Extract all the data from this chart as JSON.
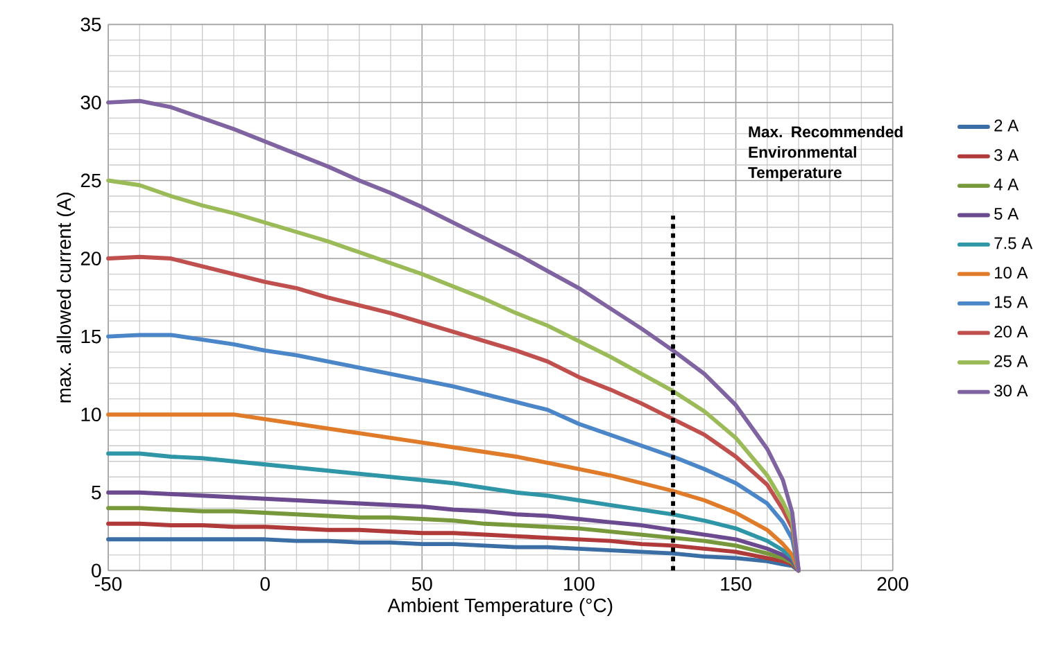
{
  "chart_data": {
    "type": "line",
    "xlabel": "Ambient Temperature (°C)",
    "ylabel": "max. allowed current (A)",
    "x": [
      -50,
      -40,
      -30,
      -20,
      -10,
      0,
      10,
      20,
      30,
      40,
      50,
      60,
      70,
      80,
      90,
      100,
      110,
      120,
      130,
      140,
      150,
      160,
      165,
      168,
      170
    ],
    "xlim": [
      -50,
      200
    ],
    "xticks": [
      -50,
      0,
      50,
      100,
      150,
      200
    ],
    "ylim": [
      0,
      35
    ],
    "yticks": [
      0,
      5,
      10,
      15,
      20,
      25,
      30,
      35
    ],
    "grid": true,
    "legend": "right",
    "marker": "none",
    "line_style": "solid",
    "annotations": [
      "Max. Recommended Environmental Temperature"
    ],
    "ref_lines": [
      {
        "axis": "x",
        "value": 130,
        "color": "#000000",
        "line_style": "dotted"
      }
    ],
    "series": [
      {
        "name": "2 A",
        "color": "#3a6ea5",
        "values": [
          2.0,
          2.0,
          2.0,
          2.0,
          2.0,
          2.0,
          1.9,
          1.9,
          1.8,
          1.8,
          1.7,
          1.7,
          1.6,
          1.5,
          1.5,
          1.4,
          1.3,
          1.2,
          1.1,
          0.9,
          0.8,
          0.6,
          0.4,
          0.3,
          0
        ]
      },
      {
        "name": "3 A",
        "color": "#b03a3a",
        "values": [
          3.0,
          3.0,
          2.9,
          2.9,
          2.8,
          2.8,
          2.7,
          2.6,
          2.6,
          2.5,
          2.4,
          2.4,
          2.3,
          2.2,
          2.1,
          2.0,
          1.9,
          1.7,
          1.6,
          1.4,
          1.2,
          0.8,
          0.6,
          0.4,
          0
        ]
      },
      {
        "name": "4 A",
        "color": "#77993c",
        "values": [
          4.0,
          4.0,
          3.9,
          3.8,
          3.8,
          3.7,
          3.6,
          3.5,
          3.4,
          3.4,
          3.3,
          3.2,
          3.0,
          2.9,
          2.8,
          2.7,
          2.5,
          2.3,
          2.1,
          1.9,
          1.6,
          1.1,
          0.8,
          0.5,
          0
        ]
      },
      {
        "name": "5 A",
        "color": "#6b4a8f",
        "values": [
          5.0,
          5.0,
          4.9,
          4.8,
          4.7,
          4.6,
          4.5,
          4.4,
          4.3,
          4.2,
          4.1,
          3.9,
          3.8,
          3.6,
          3.5,
          3.3,
          3.1,
          2.9,
          2.6,
          2.3,
          2.0,
          1.4,
          1.0,
          0.6,
          0
        ]
      },
      {
        "name": "7.5 A",
        "color": "#2f96a8",
        "values": [
          7.5,
          7.5,
          7.3,
          7.2,
          7.0,
          6.8,
          6.6,
          6.4,
          6.2,
          6.0,
          5.8,
          5.6,
          5.3,
          5.0,
          4.8,
          4.5,
          4.2,
          3.9,
          3.6,
          3.2,
          2.7,
          1.9,
          1.3,
          0.8,
          0
        ]
      },
      {
        "name": "10 A",
        "color": "#e07b2a",
        "values": [
          10,
          10,
          10,
          10,
          10,
          9.7,
          9.4,
          9.1,
          8.8,
          8.5,
          8.2,
          7.9,
          7.6,
          7.3,
          6.9,
          6.5,
          6.1,
          5.6,
          5.1,
          4.5,
          3.7,
          2.6,
          1.7,
          1.0,
          0
        ]
      },
      {
        "name": "15 A",
        "color": "#4a86c8",
        "values": [
          15,
          15.1,
          15.1,
          14.8,
          14.5,
          14.1,
          13.8,
          13.4,
          13.0,
          12.6,
          12.2,
          11.8,
          11.3,
          10.8,
          10.3,
          9.4,
          8.7,
          8.0,
          7.3,
          6.5,
          5.6,
          4.3,
          3.1,
          2.0,
          0
        ]
      },
      {
        "name": "20 A",
        "color": "#c0504d",
        "values": [
          20,
          20.1,
          20.0,
          19.5,
          19.0,
          18.5,
          18.1,
          17.5,
          17.0,
          16.5,
          15.9,
          15.3,
          14.7,
          14.1,
          13.4,
          12.4,
          11.6,
          10.7,
          9.7,
          8.7,
          7.3,
          5.5,
          3.9,
          2.7,
          0
        ]
      },
      {
        "name": "25 A",
        "color": "#9bbb59",
        "values": [
          25.0,
          24.7,
          24.0,
          23.4,
          22.9,
          22.3,
          21.7,
          21.1,
          20.4,
          19.7,
          19.0,
          18.2,
          17.4,
          16.5,
          15.7,
          14.7,
          13.7,
          12.6,
          11.5,
          10.2,
          8.5,
          6.1,
          4.4,
          3.1,
          0
        ]
      },
      {
        "name": "30 A",
        "color": "#8064a2",
        "values": [
          30,
          30.1,
          29.7,
          29.0,
          28.3,
          27.5,
          26.7,
          25.9,
          25.0,
          24.2,
          23.3,
          22.3,
          21.3,
          20.3,
          19.2,
          18.1,
          16.8,
          15.5,
          14.1,
          12.6,
          10.6,
          7.8,
          5.8,
          3.7,
          0
        ]
      }
    ]
  }
}
